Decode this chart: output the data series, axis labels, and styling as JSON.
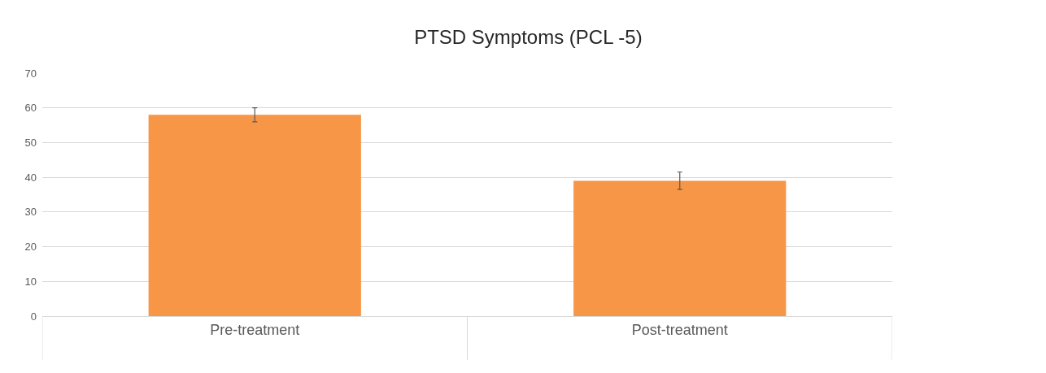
{
  "chart_data": {
    "type": "bar",
    "title": "PTSD Symptoms (PCL -5)",
    "categories": [
      "Pre-treatment",
      "Post-treatment"
    ],
    "values": [
      58,
      39
    ],
    "color": "#f79646",
    "errors": [
      2,
      2.5
    ],
    "ylim": [
      0,
      70
    ],
    "yticks": [
      0,
      10,
      20,
      30,
      40,
      50,
      60,
      70
    ],
    "grid": "y"
  }
}
